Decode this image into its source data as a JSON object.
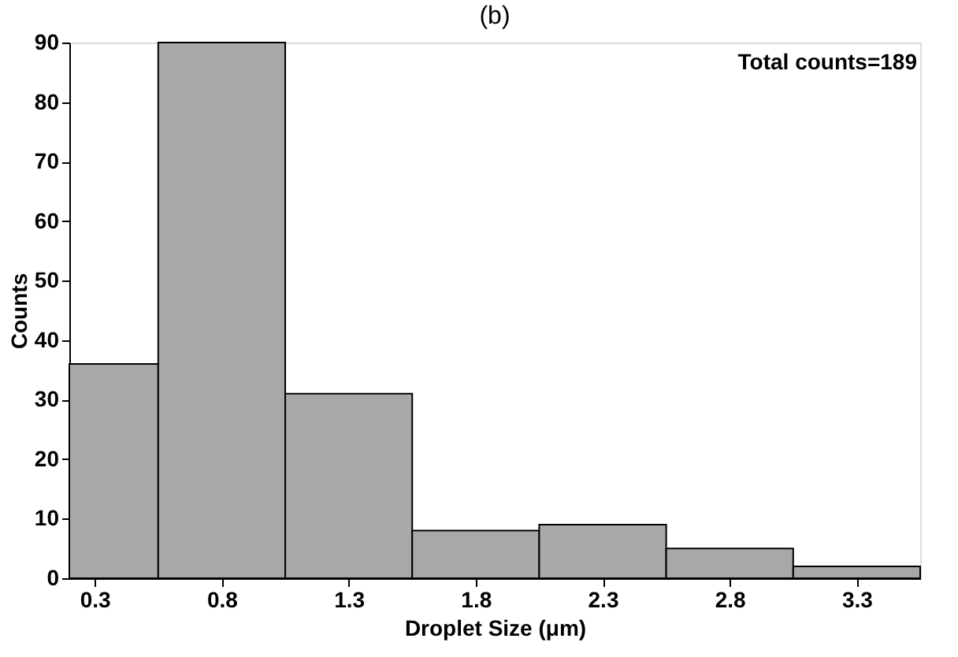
{
  "chart_data": {
    "type": "histogram",
    "title": "(b)",
    "xlabel": "Droplet Size (μm)",
    "ylabel": "Counts",
    "bins": [
      0.2,
      0.55,
      1.05,
      1.55,
      2.05,
      2.55,
      3.05,
      3.55
    ],
    "values": [
      36,
      90,
      31,
      8,
      9,
      5,
      2
    ],
    "color": "#a8a8a8",
    "xlim": [
      0.2,
      3.55
    ],
    "xticks": [
      0.3,
      0.8,
      1.3,
      1.8,
      2.3,
      2.8,
      3.3
    ],
    "ylim": [
      0,
      90
    ],
    "yticks": [
      0,
      10,
      20,
      30,
      40,
      50,
      60,
      70,
      80,
      90
    ],
    "grid": false,
    "annotations": [
      "Total counts=189"
    ]
  }
}
